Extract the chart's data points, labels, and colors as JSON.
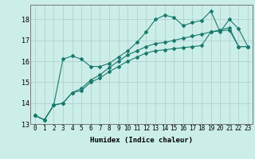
{
  "xlabel": "Humidex (Indice chaleur)",
  "ylabel": "",
  "background_color": "#cceee8",
  "grid_color": "#aacccc",
  "line_color": "#1a7a6e",
  "xlim": [
    -0.5,
    23.5
  ],
  "ylim": [
    13.0,
    18.7
  ],
  "yticks": [
    13,
    14,
    15,
    16,
    17,
    18
  ],
  "xticks": [
    0,
    1,
    2,
    3,
    4,
    5,
    6,
    7,
    8,
    9,
    10,
    11,
    12,
    13,
    14,
    15,
    16,
    17,
    18,
    19,
    20,
    21,
    22,
    23
  ],
  "line1": [
    13.4,
    13.2,
    13.9,
    16.1,
    16.25,
    16.1,
    15.75,
    15.75,
    15.9,
    16.2,
    16.5,
    16.9,
    17.4,
    18.0,
    18.2,
    18.1,
    17.7,
    17.85,
    17.95,
    18.4,
    17.4,
    18.0,
    17.55,
    16.7
  ],
  "line2": [
    13.4,
    13.2,
    13.9,
    14.0,
    14.5,
    14.6,
    15.0,
    15.2,
    15.5,
    15.75,
    16.0,
    16.2,
    16.4,
    16.5,
    16.55,
    16.6,
    16.65,
    16.7,
    16.75,
    17.4,
    17.45,
    17.5,
    16.7,
    16.7
  ],
  "line3": [
    13.4,
    13.2,
    13.9,
    14.0,
    14.5,
    14.7,
    15.1,
    15.35,
    15.7,
    16.0,
    16.3,
    16.5,
    16.7,
    16.85,
    16.9,
    17.0,
    17.1,
    17.2,
    17.3,
    17.4,
    17.5,
    17.6,
    16.7,
    16.7
  ],
  "marker_size": 2.0,
  "linewidth": 0.8,
  "xlabel_fontsize": 6.5,
  "tick_fontsize": 5.5
}
